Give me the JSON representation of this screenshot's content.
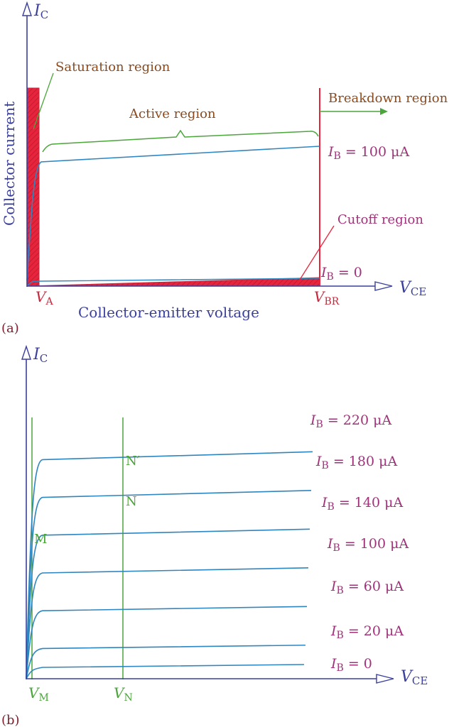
{
  "panel_a": {
    "tag": "(a)",
    "y_axis": {
      "symbol": "I",
      "sub": "C"
    },
    "x_axis": {
      "symbol": "V",
      "sub": "CE"
    },
    "y_title": "Collector current",
    "x_title": "Collector-emitter voltage",
    "labels": {
      "saturation": "Saturation region",
      "active": "Active region",
      "breakdown": "Breakdown region",
      "cutoff": "Cutoff region",
      "ib100": {
        "symbol": "I",
        "sub": "B",
        "value": " = 100 μA"
      },
      "ib0": {
        "symbol": "I",
        "sub": "B",
        "value": " = 0"
      },
      "va": {
        "symbol": "V",
        "sub": "A"
      },
      "vbr": {
        "symbol": "V",
        "sub": "BR"
      }
    }
  },
  "panel_b": {
    "tag": "(b)",
    "y_axis": {
      "symbol": "I",
      "sub": "C"
    },
    "x_axis": {
      "symbol": "V",
      "sub": "CE"
    },
    "curves": [
      {
        "symbol": "I",
        "sub": "B",
        "value": " = 220 μA",
        "level": 220
      },
      {
        "symbol": "I",
        "sub": "B",
        "value": " = 180 μA",
        "level": 180
      },
      {
        "symbol": "I",
        "sub": "B",
        "value": " = 140 μA",
        "level": 140
      },
      {
        "symbol": "I",
        "sub": "B",
        "value": " = 100 μA",
        "level": 100
      },
      {
        "symbol": "I",
        "sub": "B",
        "value": " = 60 μA",
        "level": 60
      },
      {
        "symbol": "I",
        "sub": "B",
        "value": " = 20 μA",
        "level": 20
      },
      {
        "symbol": "I",
        "sub": "B",
        "value": " = 0",
        "level": 0
      }
    ],
    "points": {
      "m": "M",
      "n": "N",
      "n_prime": "N′"
    },
    "vm": {
      "symbol": "V",
      "sub": "M"
    },
    "vn": {
      "symbol": "V",
      "sub": "N"
    }
  },
  "colors": {
    "axis": "#3a3f9c",
    "curve": "#2e86c1",
    "region": "#e8243c",
    "annotation": "#8b4a1e",
    "current_label": "#a0327a",
    "green": "#4aa63a"
  }
}
